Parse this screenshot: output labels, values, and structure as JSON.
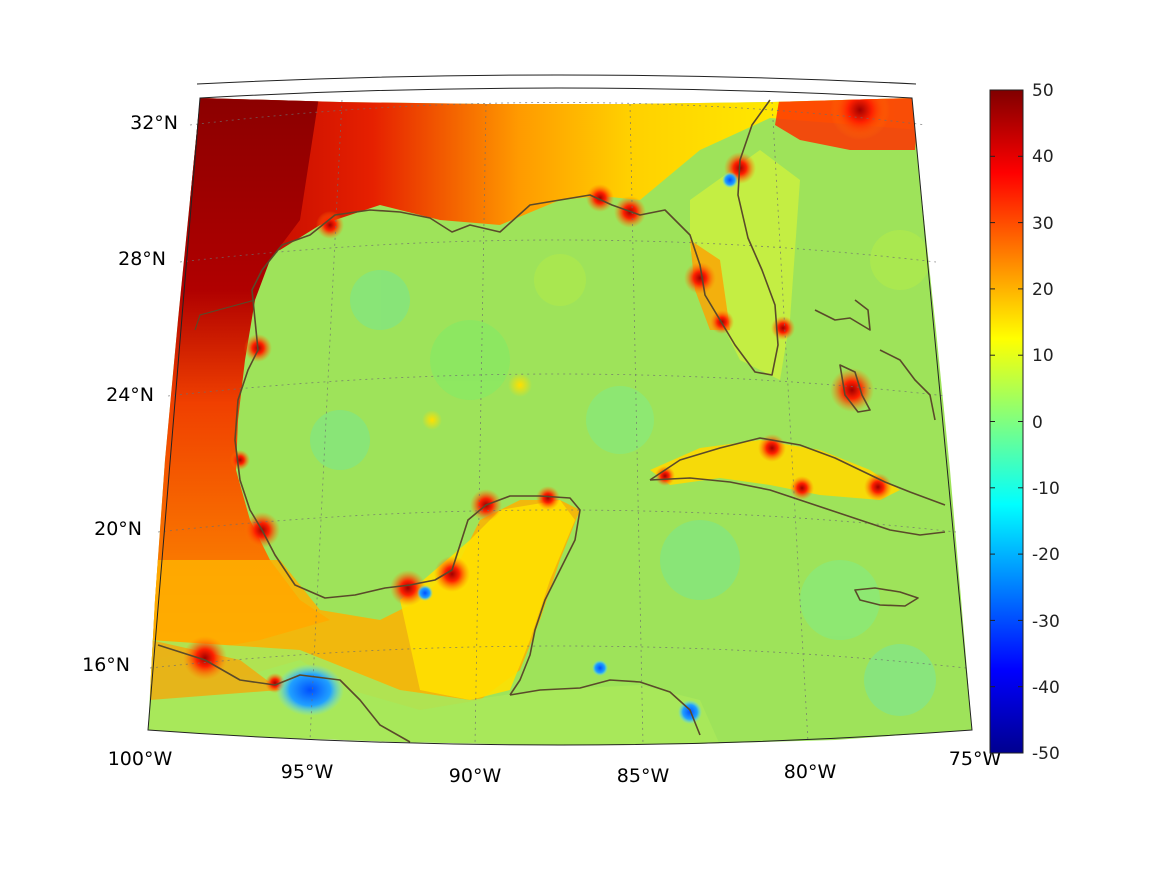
{
  "map": {
    "lon_labels": [
      "100°W",
      "95°W",
      "90°W",
      "85°W",
      "80°W",
      "75°W"
    ],
    "lat_labels": [
      "16°N",
      "20°N",
      "24°N",
      "28°N",
      "32°N"
    ]
  },
  "colorbar": {
    "colormap": "jet",
    "min": -50,
    "max": 50,
    "tick_labels": [
      "50",
      "40",
      "30",
      "20",
      "10",
      "0",
      "-10",
      "-20",
      "-30",
      "-40",
      "-50"
    ]
  },
  "colors": {
    "coastline": "#5a4a2a",
    "ocean_background": "#9ee35a",
    "land_warm": "#f5a000",
    "land_hot": "#7a0000"
  }
}
